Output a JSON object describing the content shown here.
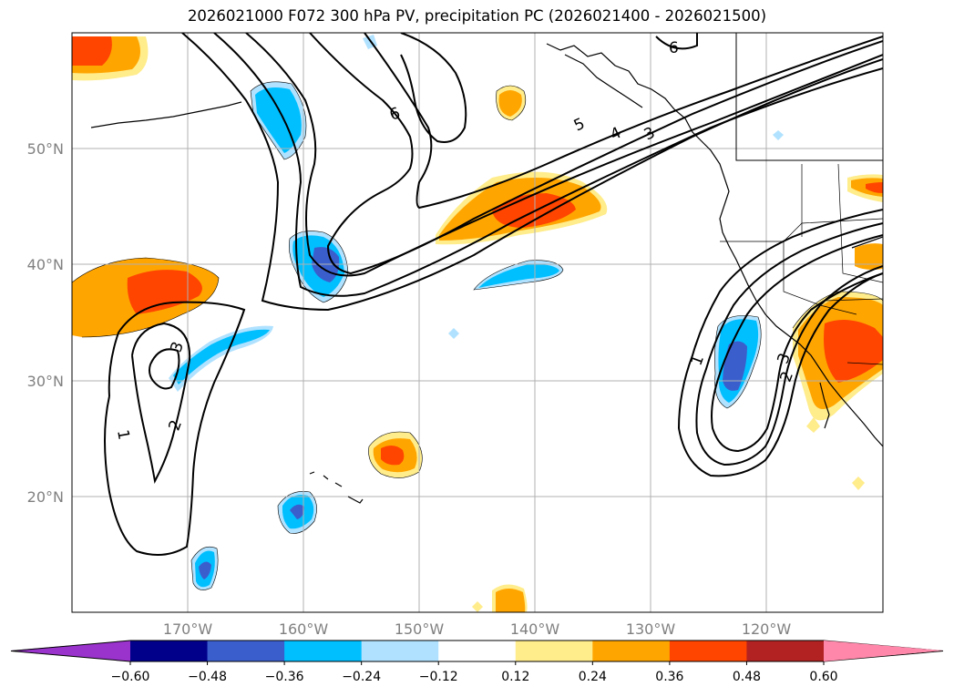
{
  "title": "2026021000 F072 300 hPa PV, precipitation PC (2026021400 - 2026021500)",
  "map": {
    "lat_labels": [
      "50°N",
      "40°N",
      "30°N",
      "20°N"
    ],
    "lon_labels": [
      "170°W",
      "160°W",
      "150°W",
      "140°W",
      "130°W",
      "120°W"
    ]
  },
  "pv_contour_labels": [
    "6",
    "6",
    "5",
    "4",
    "3",
    "3",
    "2",
    "1",
    "1",
    "2",
    "3"
  ],
  "colorbar": {
    "ticks": [
      "−0.60",
      "−0.48",
      "−0.36",
      "−0.24",
      "−0.12",
      "0.12",
      "0.24",
      "0.36",
      "0.48",
      "0.60"
    ],
    "colors": [
      "#9933cc",
      "#00008b",
      "#3a5fcd",
      "#00bfff",
      "#b0e2ff",
      "#ffffff",
      "#ffec8b",
      "#ffa500",
      "#ff4500",
      "#b22222",
      "#ff88aa",
      "#ff88aa"
    ]
  }
}
